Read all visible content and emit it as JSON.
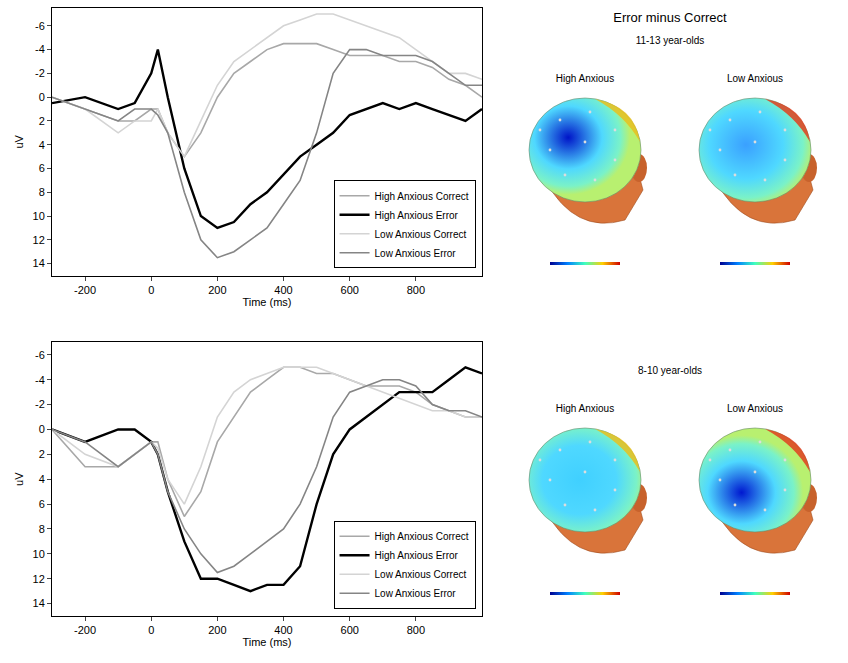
{
  "chart_data": [
    {
      "type": "line",
      "x": [
        -300,
        -200,
        -100,
        -50,
        0,
        20,
        50,
        100,
        150,
        200,
        250,
        300,
        350,
        400,
        450,
        500,
        550,
        600,
        650,
        700,
        750,
        800,
        850,
        900,
        950,
        1000
      ],
      "series": [
        {
          "name": "High Anxious Correct",
          "color": "#a8a8a8",
          "values": [
            0,
            1,
            2,
            2,
            1,
            1,
            3,
            5,
            3,
            0,
            -2,
            -3,
            -4,
            -4.5,
            -4.5,
            -4.5,
            -4,
            -3.5,
            -3.5,
            -3.5,
            -3,
            -3,
            -2.5,
            -1.5,
            -1,
            0
          ]
        },
        {
          "name": "High Anxious Error",
          "color": "#000000",
          "values": [
            0.5,
            0,
            1,
            0.5,
            -2,
            -4,
            0,
            6,
            10,
            11,
            10.5,
            9,
            8,
            6.5,
            5,
            4,
            3,
            1.5,
            1,
            0.5,
            1,
            0.5,
            1,
            1.5,
            2,
            1
          ]
        },
        {
          "name": "Low Anxious Correct",
          "color": "#d4d4d4",
          "values": [
            0,
            1,
            3,
            2,
            2,
            1,
            3,
            5,
            2,
            -1,
            -3,
            -4,
            -5,
            -6,
            -6.5,
            -7,
            -7,
            -6.5,
            -6,
            -5.5,
            -5,
            -4,
            -3,
            -2,
            -2,
            -1.5
          ]
        },
        {
          "name": "Low Anxious Error",
          "color": "#858585",
          "values": [
            0,
            1,
            2,
            1,
            1,
            1.5,
            3,
            8,
            12,
            13.5,
            13,
            12,
            11,
            9,
            7,
            3,
            -2,
            -4,
            -4,
            -3.5,
            -3.5,
            -3.5,
            -3,
            -2,
            -1,
            -1
          ]
        }
      ],
      "xlim": [
        -300,
        1000
      ],
      "ylim": [
        15,
        -7.5
      ],
      "xticks": [
        -200,
        0,
        200,
        400,
        600,
        800
      ],
      "yticks": [
        -6,
        -4,
        -2,
        0,
        2,
        4,
        6,
        8,
        10,
        12,
        14
      ],
      "x_label": "Time (ms)",
      "y_label": "uV",
      "legend": "lower right"
    },
    {
      "type": "line",
      "x": [
        -300,
        -200,
        -100,
        -50,
        0,
        20,
        50,
        100,
        150,
        200,
        250,
        300,
        350,
        400,
        450,
        500,
        550,
        600,
        650,
        700,
        750,
        800,
        850,
        900,
        950,
        1000
      ],
      "series": [
        {
          "name": "High Anxious Correct",
          "color": "#a8a8a8",
          "values": [
            0,
            3,
            3,
            2,
            1,
            1,
            4,
            7,
            5,
            1,
            -1,
            -3,
            -4,
            -5,
            -5,
            -4.5,
            -4.5,
            -4,
            -3.5,
            -3.5,
            -3.5,
            -3,
            -2,
            -1.5,
            -1,
            -1
          ]
        },
        {
          "name": "High Anxious Error",
          "color": "#000000",
          "values": [
            0,
            1,
            0,
            0,
            1,
            2,
            5,
            9,
            12,
            12,
            12.5,
            13,
            12.5,
            12.5,
            11,
            6,
            2,
            0,
            -1,
            -2,
            -3,
            -3,
            -3,
            -4,
            -5,
            -4.5
          ]
        },
        {
          "name": "Low Anxious Correct",
          "color": "#d4d4d4",
          "values": [
            0,
            2,
            3,
            2,
            1,
            1.5,
            4,
            6,
            3,
            -1,
            -3,
            -4,
            -4.5,
            -5,
            -5,
            -5,
            -4.5,
            -4,
            -3.5,
            -3,
            -2.5,
            -2,
            -1.5,
            -1.5,
            -1,
            -1
          ]
        },
        {
          "name": "Low Anxious Error",
          "color": "#858585",
          "values": [
            0,
            1,
            3,
            2,
            1,
            2,
            5,
            8,
            10,
            11.5,
            11,
            10,
            9,
            8,
            6,
            3,
            -1,
            -3,
            -3.5,
            -4,
            -4,
            -3.5,
            -2,
            -1.5,
            -1.5,
            -1
          ]
        }
      ],
      "xlim": [
        -300,
        1000
      ],
      "ylim": [
        15,
        -7
      ],
      "xticks": [
        -200,
        0,
        200,
        400,
        600,
        800
      ],
      "yticks": [
        -6,
        -4,
        -2,
        0,
        2,
        4,
        6,
        8,
        10,
        12,
        14
      ],
      "x_label": "Time (ms)",
      "y_label": "uV",
      "legend": "lower right"
    }
  ],
  "topomaps": {
    "title": "Error minus Correct",
    "groups": [
      {
        "title": "11-13 year-olds",
        "panels": [
          "High Anxious",
          "Low Anxious"
        ]
      },
      {
        "title": "8-10 year-olds",
        "panels": [
          "High Anxious",
          "Low Anxious"
        ]
      }
    ]
  }
}
